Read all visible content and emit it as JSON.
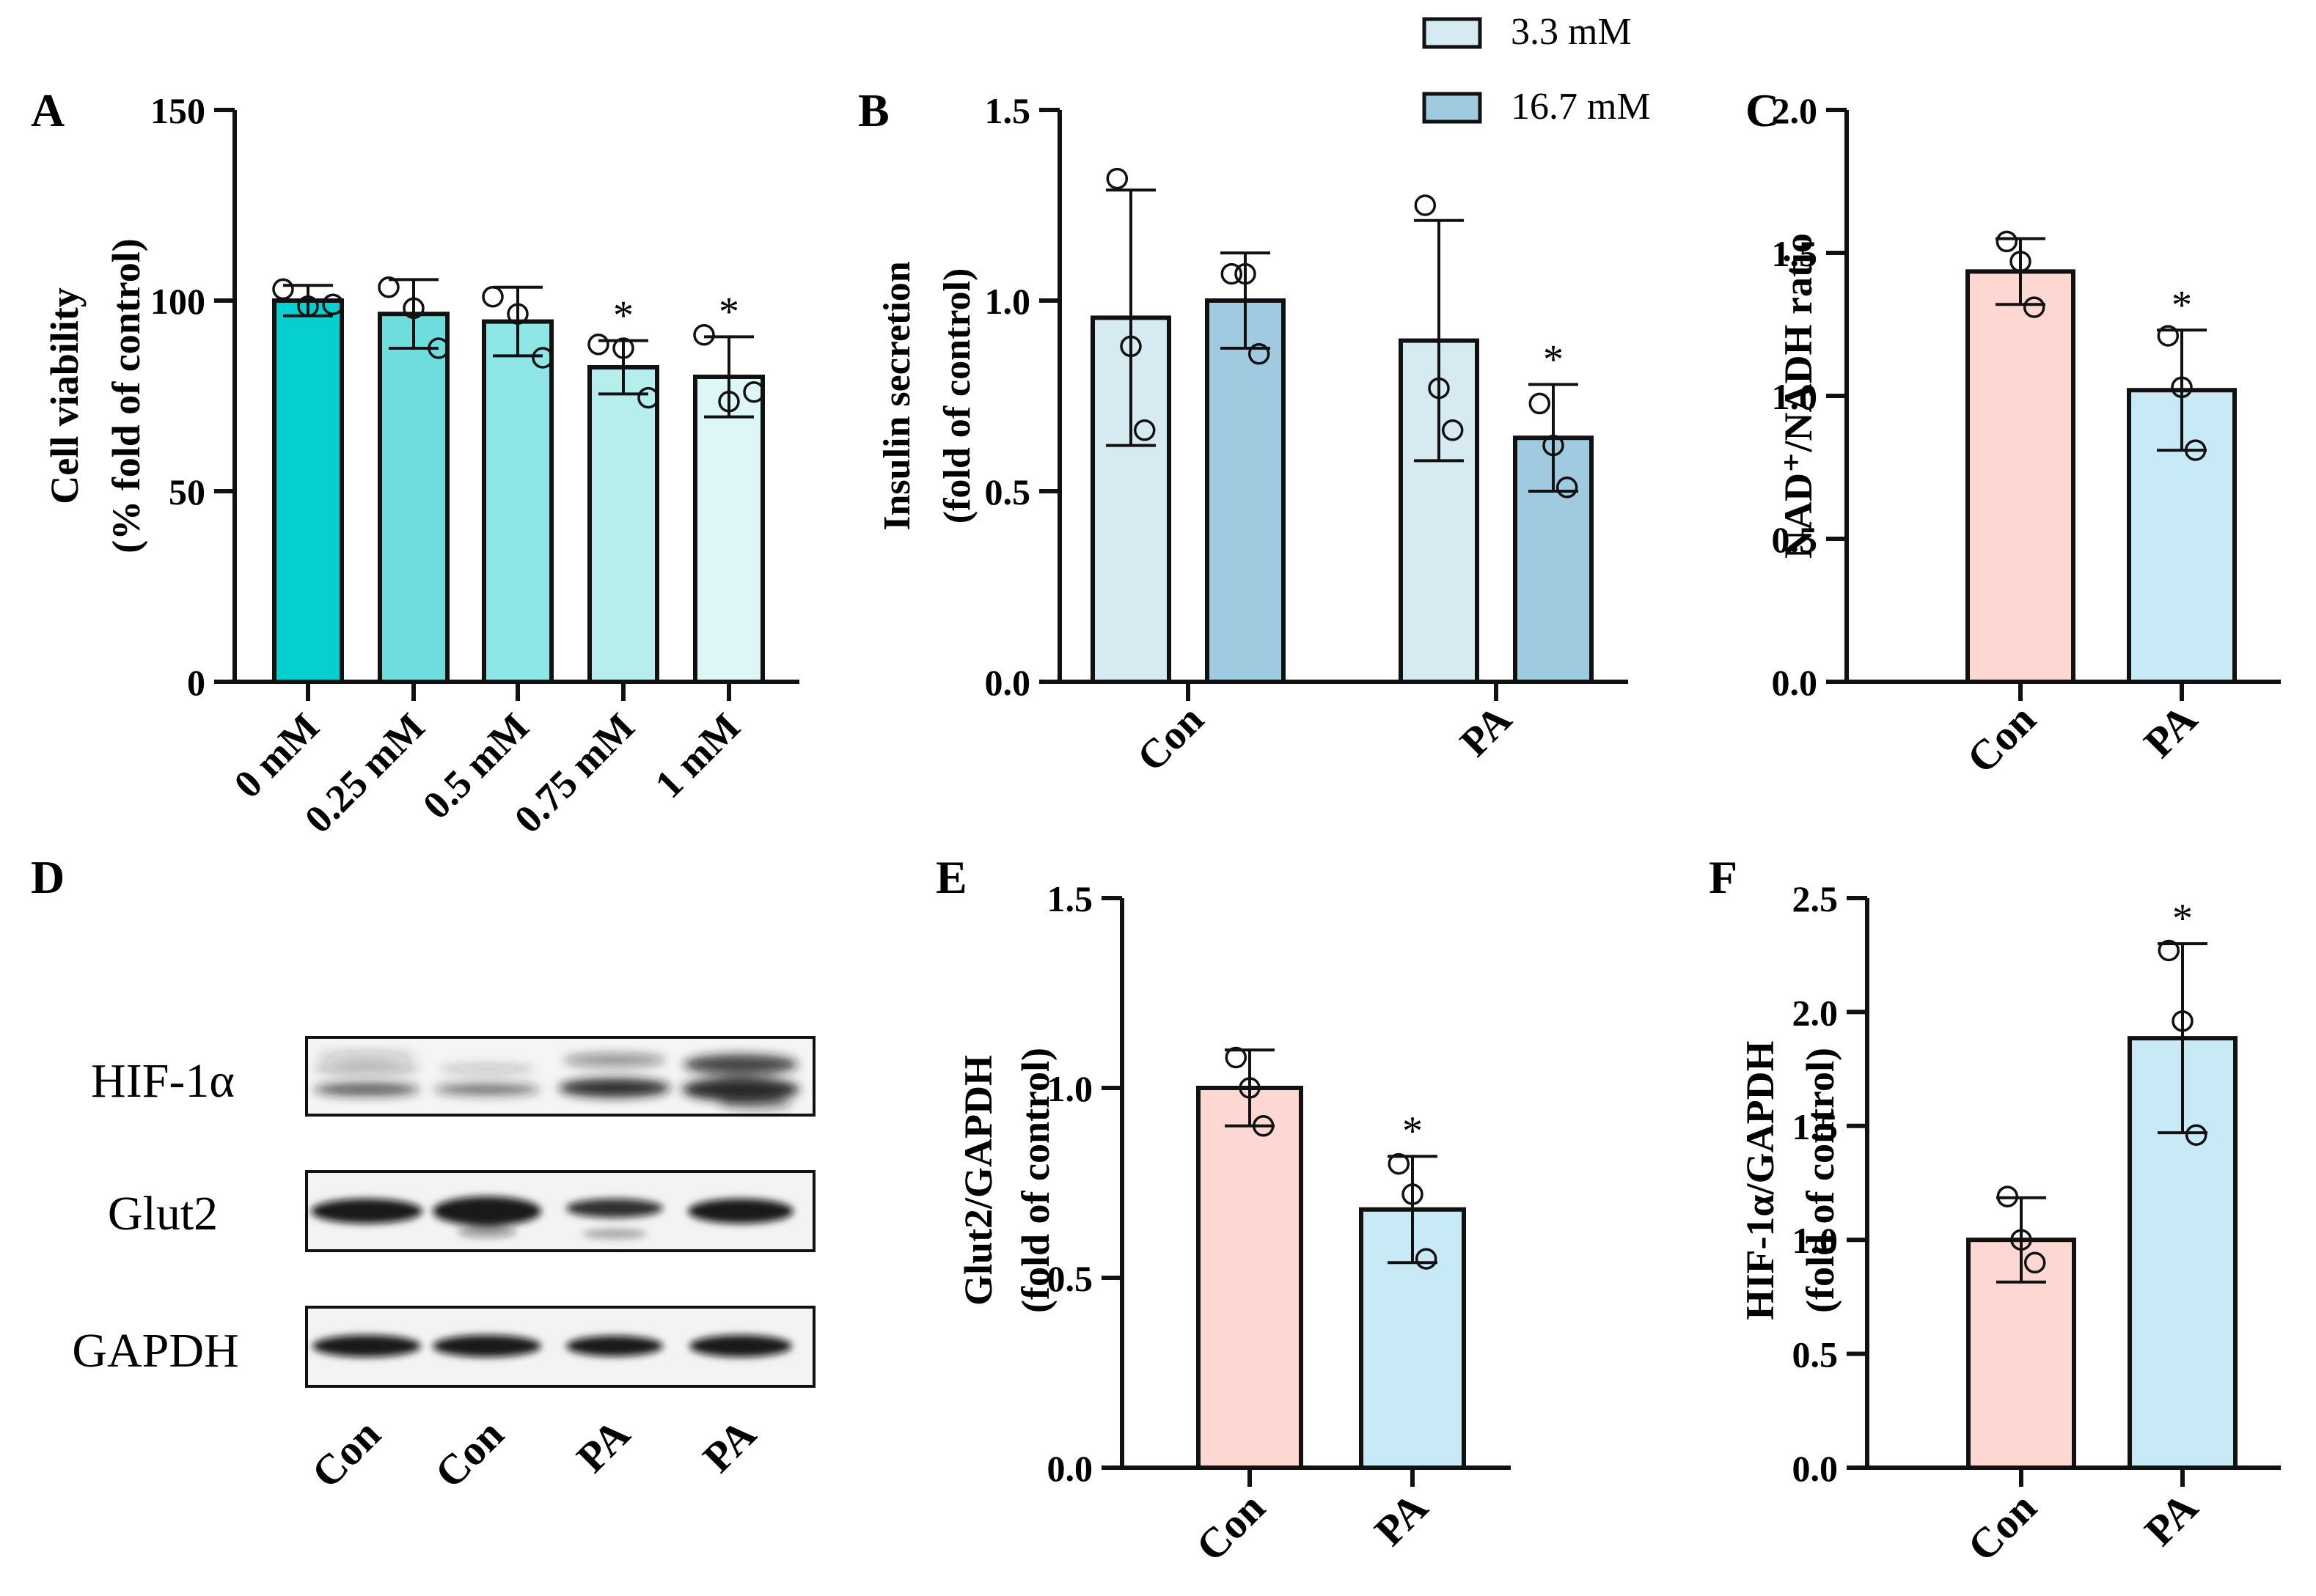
{
  "figure": {
    "legend": {
      "entries": [
        {
          "label": "3.3 mM",
          "color": "#d6eaf1"
        },
        {
          "label": "16.7 mM",
          "color": "#9fcae0"
        }
      ]
    },
    "blot": {
      "label": "D",
      "rows": [
        "HIF-1α",
        "Glut2",
        "GAPDH"
      ],
      "lanes": [
        "Con",
        "Con",
        "PA",
        "PA"
      ]
    }
  },
  "chart_data": [
    {
      "panel": "A",
      "type": "bar",
      "title": "",
      "ylabel_lines": [
        "Cell viability",
        "(% fold of control)"
      ],
      "ylim": [
        0,
        150
      ],
      "yticks": [
        0,
        50,
        100,
        150
      ],
      "ytick_labels": [
        "0",
        "50",
        "100",
        "150"
      ],
      "categories": [
        "0 mM",
        "0.25 mM",
        "0.5 mM",
        "0.75 mM",
        "1 mM"
      ],
      "values": [
        100,
        96.5,
        94.5,
        82.5,
        80
      ],
      "errors": [
        4,
        9,
        9,
        7,
        10.5
      ],
      "colors": [
        "#06cfcf",
        "#6ddddd",
        "#8fe6e6",
        "#b6eeee",
        "#ddf7f7"
      ],
      "points": [
        [
          103,
          98.5,
          99
        ],
        [
          103.5,
          98,
          87.5
        ],
        [
          101,
          96.5,
          85
        ],
        [
          88.5,
          87.5,
          74.5
        ],
        [
          91,
          73.5,
          76
        ]
      ],
      "sig": [
        "",
        "",
        "",
        "*",
        "*"
      ]
    },
    {
      "panel": "B",
      "type": "bar",
      "title": "",
      "ylabel_lines": [
        "Insulin secretion",
        "(fold of control)"
      ],
      "ylim": [
        0,
        1.5
      ],
      "yticks": [
        0,
        0.5,
        1.0,
        1.5
      ],
      "ytick_labels": [
        "0.0",
        "0.5",
        "1.0",
        "1.5"
      ],
      "categories": [
        "Con",
        "PA"
      ],
      "series": [
        {
          "name": "3.3 mM",
          "values": [
            0.955,
            0.895
          ],
          "errors": [
            0.335,
            0.315
          ],
          "points": [
            [
              1.32,
              0.88,
              0.66
            ],
            [
              1.25,
              0.77,
              0.66
            ]
          ]
        },
        {
          "name": "16.7 mM",
          "values": [
            1.0,
            0.64
          ],
          "errors": [
            0.125,
            0.14
          ],
          "points": [
            [
              1.07,
              1.07,
              0.86
            ],
            [
              0.73,
              0.62,
              0.51
            ]
          ]
        }
      ],
      "sig": [
        [
          "",
          ""
        ],
        [
          "",
          "*"
        ]
      ]
    },
    {
      "panel": "C",
      "type": "bar",
      "title": "",
      "ylabel": "NAD⁺/NADH ratio",
      "ylim": [
        0,
        2.0
      ],
      "yticks": [
        0,
        0.5,
        1.0,
        1.5,
        2.0
      ],
      "ytick_labels": [
        "0.0",
        "0.5",
        "1.0",
        "1.5",
        "2.0"
      ],
      "categories": [
        "Con",
        "PA"
      ],
      "values": [
        1.435,
        1.02
      ],
      "errors": [
        0.115,
        0.21
      ],
      "colors": [
        "#fdd8d3",
        "#c8e9f6"
      ],
      "points": [
        [
          1.54,
          1.47,
          1.31
        ],
        [
          1.21,
          1.03,
          0.81
        ]
      ],
      "sig": [
        "",
        "*"
      ]
    },
    {
      "panel": "E",
      "type": "bar",
      "title": "",
      "ylabel_lines": [
        "Glut2/GAPDH",
        "(fold of control)"
      ],
      "ylim": [
        0,
        1.5
      ],
      "yticks": [
        0,
        0.5,
        1.0,
        1.5
      ],
      "ytick_labels": [
        "0.0",
        "0.5",
        "1.0",
        "1.5"
      ],
      "categories": [
        "Con",
        "PA"
      ],
      "values": [
        1.0,
        0.68
      ],
      "errors": [
        0.1,
        0.14
      ],
      "colors": [
        "#fdd8d3",
        "#c8e9f6"
      ],
      "points": [
        [
          1.08,
          1.0,
          0.9
        ],
        [
          0.8,
          0.72,
          0.55
        ]
      ],
      "sig": [
        "",
        "*"
      ]
    },
    {
      "panel": "F",
      "type": "bar",
      "title": "",
      "ylabel_lines": [
        "HIF-1α/GAPDH",
        "(fold of control)"
      ],
      "ylim": [
        0,
        2.5
      ],
      "yticks": [
        0,
        0.5,
        1.0,
        1.5,
        2.0,
        2.5
      ],
      "ytick_labels": [
        "0.0",
        "0.5",
        "1.0",
        "1.5",
        "2.0",
        "2.5"
      ],
      "categories": [
        "Con",
        "PA"
      ],
      "values": [
        1.0,
        1.885
      ],
      "errors": [
        0.185,
        0.415
      ],
      "colors": [
        "#fdd8d3",
        "#c8e9f6"
      ],
      "points": [
        [
          1.19,
          1.0,
          0.9
        ],
        [
          2.27,
          1.96,
          1.46
        ]
      ],
      "sig": [
        "",
        "*"
      ]
    }
  ]
}
